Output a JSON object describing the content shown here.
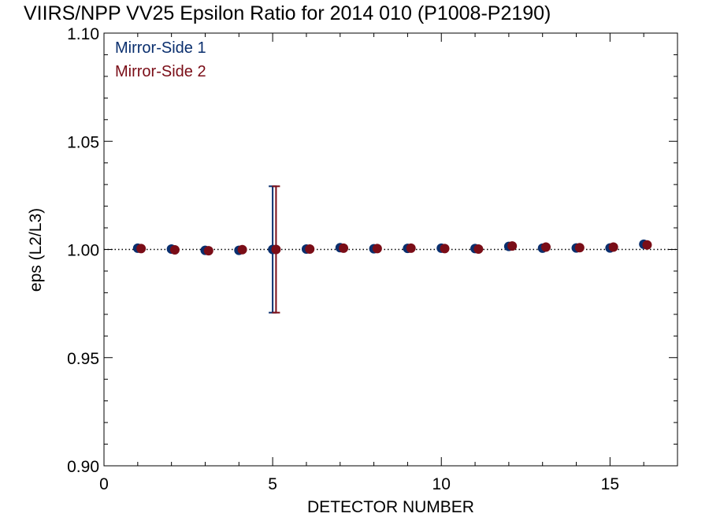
{
  "chart_data": {
    "type": "scatter",
    "title": "VIIRS/NPP VV25 Epsilon Ratio for 2014 010 (P1008-P2190)",
    "xlabel": "DETECTOR NUMBER",
    "ylabel": "eps (L2/L3)",
    "xlim": [
      0,
      17
    ],
    "ylim": [
      0.9,
      1.1
    ],
    "xticks": [
      0,
      5,
      10,
      15
    ],
    "xtick_labels": [
      "0",
      "5",
      "10",
      "15"
    ],
    "yticks": [
      0.9,
      0.95,
      1.0,
      1.05,
      1.1
    ],
    "ytick_labels": [
      "0.90",
      "0.95",
      "1.00",
      "1.05",
      "1.10"
    ],
    "reference_line": 1.0,
    "grid": false,
    "legend_position": "top-left",
    "series": [
      {
        "name": "Mirror-Side 1",
        "color": "#0a2f6e",
        "x": [
          1,
          2,
          3,
          4,
          5,
          6,
          7,
          8,
          9,
          10,
          11,
          12,
          13,
          14,
          15,
          16
        ],
        "y": [
          1.0006,
          1.0002,
          0.9996,
          0.9996,
          1.0,
          1.0002,
          1.0008,
          1.0003,
          1.0005,
          1.0006,
          1.0004,
          1.0014,
          1.0006,
          1.0007,
          1.0007,
          1.0024
        ],
        "error_x": 5,
        "error_range": [
          0.9708,
          1.0292
        ]
      },
      {
        "name": "Mirror-Side 2",
        "color": "#7a0d17",
        "x": [
          1.1,
          2.1,
          3.1,
          4.1,
          5.1,
          6.1,
          7.1,
          8.1,
          9.1,
          10.1,
          11.1,
          12.1,
          13.1,
          14.1,
          15.1,
          16.1
        ],
        "y": [
          1.0004,
          0.9998,
          0.9994,
          0.9999,
          1.0,
          1.0002,
          1.0006,
          1.0004,
          1.0006,
          1.0004,
          1.0002,
          1.0016,
          1.0011,
          1.0008,
          1.0011,
          1.0021
        ],
        "error_x": 5.1,
        "error_range": [
          0.9708,
          1.0292
        ]
      }
    ]
  }
}
